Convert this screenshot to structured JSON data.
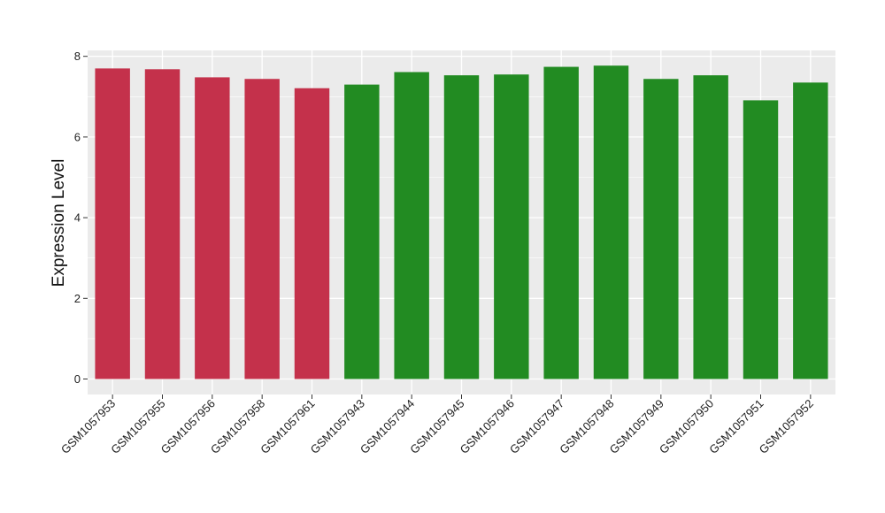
{
  "chart_data": {
    "type": "bar",
    "title": "",
    "xlabel": "",
    "ylabel": "Expression Level",
    "ylim": [
      0,
      8.0
    ],
    "yticks": [
      0,
      2,
      4,
      6,
      8
    ],
    "grid": true,
    "colors": {
      "group_a": "#c4314b",
      "group_b": "#228b22",
      "panel": "#ebebeb",
      "grid": "#ffffff"
    },
    "categories": [
      "GSM1057953",
      "GSM1057955",
      "GSM1057956",
      "GSM1057958",
      "GSM1057961",
      "GSM1057943",
      "GSM1057944",
      "GSM1057945",
      "GSM1057946",
      "GSM1057947",
      "GSM1057948",
      "GSM1057949",
      "GSM1057950",
      "GSM1057951",
      "GSM1057952"
    ],
    "values": [
      7.7,
      7.68,
      7.48,
      7.44,
      7.21,
      7.3,
      7.61,
      7.53,
      7.55,
      7.74,
      7.77,
      7.44,
      7.53,
      6.91,
      7.35
    ],
    "groups": [
      "group_a",
      "group_a",
      "group_a",
      "group_a",
      "group_a",
      "group_b",
      "group_b",
      "group_b",
      "group_b",
      "group_b",
      "group_b",
      "group_b",
      "group_b",
      "group_b",
      "group_b"
    ]
  }
}
